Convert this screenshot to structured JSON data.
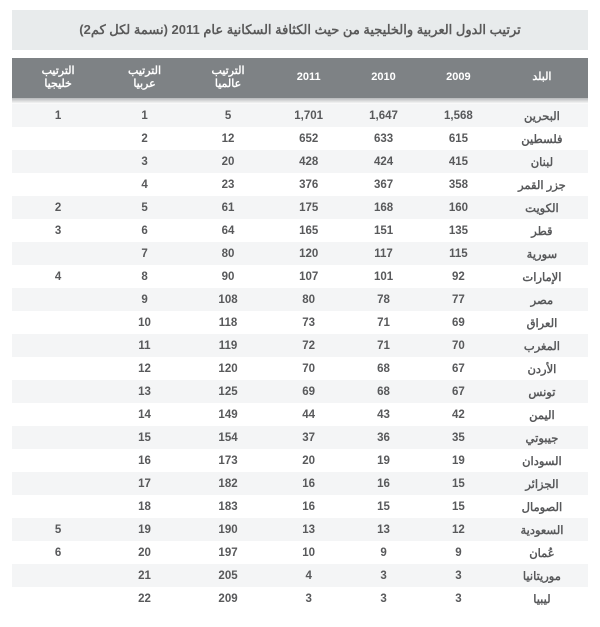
{
  "title": "ترتيب الدول العربية والخليجية من حيث الكثافة السكانية عام 2011 (نسمة لكل كم2)",
  "columns": [
    "البلد",
    "2009",
    "2010",
    "2011",
    "الترتيب عالميا",
    "الترتيب عربيا",
    "الترتيب خليجيا"
  ],
  "col_widths": [
    "16%",
    "13%",
    "13%",
    "13%",
    "15%",
    "14%",
    "16%"
  ],
  "styling": {
    "header_bg": "#7e8285",
    "header_text": "#ffffff",
    "row_odd_bg": "#ffffff",
    "row_even_bg": "#f4f5f6",
    "title_bg": "#e8ebec",
    "text_color": "#58595b",
    "header_fontsize": 11,
    "cell_fontsize": 11.5,
    "title_fontsize": 13
  },
  "rows": [
    {
      "country": "البحرين",
      "y2009": "1,568",
      "y2010": "1,647",
      "y2011": "1,701",
      "world": "5",
      "arab": "1",
      "gulf": "1"
    },
    {
      "country": "فلسطين",
      "y2009": "615",
      "y2010": "633",
      "y2011": "652",
      "world": "12",
      "arab": "2",
      "gulf": ""
    },
    {
      "country": "لبنان",
      "y2009": "415",
      "y2010": "424",
      "y2011": "428",
      "world": "20",
      "arab": "3",
      "gulf": ""
    },
    {
      "country": "جزر القمر",
      "y2009": "358",
      "y2010": "367",
      "y2011": "376",
      "world": "23",
      "arab": "4",
      "gulf": ""
    },
    {
      "country": "الكويت",
      "y2009": "160",
      "y2010": "168",
      "y2011": "175",
      "world": "61",
      "arab": "5",
      "gulf": "2"
    },
    {
      "country": "قطر",
      "y2009": "135",
      "y2010": "151",
      "y2011": "165",
      "world": "64",
      "arab": "6",
      "gulf": "3"
    },
    {
      "country": "سورية",
      "y2009": "115",
      "y2010": "117",
      "y2011": "120",
      "world": "80",
      "arab": "7",
      "gulf": ""
    },
    {
      "country": "الإمارات",
      "y2009": "92",
      "y2010": "101",
      "y2011": "107",
      "world": "90",
      "arab": "8",
      "gulf": "4"
    },
    {
      "country": "مصر",
      "y2009": "77",
      "y2010": "78",
      "y2011": "80",
      "world": "108",
      "arab": "9",
      "gulf": ""
    },
    {
      "country": "العراق",
      "y2009": "69",
      "y2010": "71",
      "y2011": "73",
      "world": "118",
      "arab": "10",
      "gulf": ""
    },
    {
      "country": "المغرب",
      "y2009": "70",
      "y2010": "71",
      "y2011": "72",
      "world": "119",
      "arab": "11",
      "gulf": ""
    },
    {
      "country": "الأردن",
      "y2009": "67",
      "y2010": "68",
      "y2011": "70",
      "world": "120",
      "arab": "12",
      "gulf": ""
    },
    {
      "country": "تونس",
      "y2009": "67",
      "y2010": "68",
      "y2011": "69",
      "world": "125",
      "arab": "13",
      "gulf": ""
    },
    {
      "country": "اليمن",
      "y2009": "42",
      "y2010": "43",
      "y2011": "44",
      "world": "149",
      "arab": "14",
      "gulf": ""
    },
    {
      "country": "جيبوتي",
      "y2009": "35",
      "y2010": "36",
      "y2011": "37",
      "world": "154",
      "arab": "15",
      "gulf": ""
    },
    {
      "country": "السودان",
      "y2009": "19",
      "y2010": "19",
      "y2011": "20",
      "world": "173",
      "arab": "16",
      "gulf": ""
    },
    {
      "country": "الجزائر",
      "y2009": "15",
      "y2010": "16",
      "y2011": "16",
      "world": "182",
      "arab": "17",
      "gulf": ""
    },
    {
      "country": "الصومال",
      "y2009": "15",
      "y2010": "15",
      "y2011": "16",
      "world": "183",
      "arab": "18",
      "gulf": ""
    },
    {
      "country": "السعودية",
      "y2009": "12",
      "y2010": "13",
      "y2011": "13",
      "world": "190",
      "arab": "19",
      "gulf": "5"
    },
    {
      "country": "عُمان",
      "y2009": "9",
      "y2010": "9",
      "y2011": "10",
      "world": "197",
      "arab": "20",
      "gulf": "6"
    },
    {
      "country": "موريتانيا",
      "y2009": "3",
      "y2010": "3",
      "y2011": "4",
      "world": "205",
      "arab": "21",
      "gulf": ""
    },
    {
      "country": "ليبيا",
      "y2009": "3",
      "y2010": "3",
      "y2011": "3",
      "world": "209",
      "arab": "22",
      "gulf": ""
    }
  ]
}
